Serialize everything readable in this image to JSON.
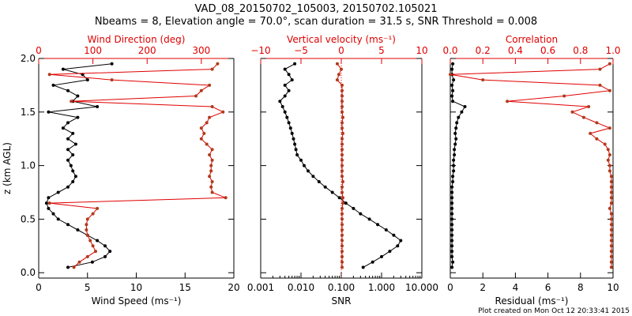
{
  "title_line1": "VAD_08_20150702_105003, 20150702.105021",
  "title_line2": "Nbeams = 8, Elevation angle = 70.0°, scan duration = 31.5 s, SNR Threshold = 0.008",
  "footer": "Plot created on Mon Oct 12 20:33:41 2015",
  "colors": {
    "black_series": "#000000",
    "red_series": "#b03a1a",
    "red_line": "#e00000",
    "red_axis": "#e00000"
  },
  "chart_data": [
    {
      "id": "wind",
      "type": "line",
      "shared_y": {
        "label": "z (km AGL)",
        "ylim": [
          -0.05,
          2.0
        ],
        "ticks": [
          0.0,
          0.5,
          1.0,
          1.5,
          2.0
        ],
        "tick_labels": [
          "0.0",
          "0.5",
          "1.0",
          "1.5",
          "2.0"
        ]
      },
      "bottom_axis": {
        "label": "Wind Speed (ms⁻¹)",
        "xlim": [
          0,
          20
        ],
        "ticks": [
          0,
          5,
          10,
          15,
          20
        ],
        "tick_labels": [
          "0",
          "5",
          "10",
          "15",
          "20"
        ]
      },
      "top_axis": {
        "label": "Wind Direction (deg)",
        "xlim": [
          0,
          360
        ],
        "ticks": [
          0,
          100,
          200,
          300
        ],
        "tick_labels": [
          "0",
          "100",
          "200",
          "300"
        ]
      },
      "series": [
        {
          "name": "Wind Speed",
          "axis": "bottom",
          "color": "black",
          "z": [
            0.05,
            0.1,
            0.15,
            0.2,
            0.25,
            0.3,
            0.35,
            0.4,
            0.45,
            0.5,
            0.55,
            0.6,
            0.65,
            0.7,
            0.75,
            0.8,
            0.85,
            0.9,
            0.95,
            1.0,
            1.05,
            1.1,
            1.15,
            1.2,
            1.25,
            1.3,
            1.35,
            1.4,
            1.45,
            1.5,
            1.55,
            1.6,
            1.65,
            1.7,
            1.75,
            1.8,
            1.85,
            1.9,
            1.95
          ],
          "values": [
            3.0,
            5.5,
            6.8,
            7.3,
            6.8,
            6.0,
            5.0,
            4.0,
            3.0,
            2.0,
            1.5,
            1.0,
            0.8,
            1.0,
            2.0,
            3.0,
            3.5,
            3.8,
            3.5,
            3.3,
            3.0,
            3.5,
            3.0,
            3.8,
            3.0,
            3.5,
            2.5,
            3.0,
            4.0,
            1.0,
            6.0,
            3.5,
            4.0,
            3.0,
            1.5,
            5.0,
            4.5,
            2.5,
            7.5
          ]
        },
        {
          "name": "Wind Direction",
          "axis": "top",
          "color": "red",
          "z": [
            0.05,
            0.1,
            0.15,
            0.2,
            0.25,
            0.3,
            0.35,
            0.4,
            0.45,
            0.5,
            0.55,
            0.6,
            0.65,
            0.7,
            0.75,
            0.8,
            0.85,
            0.9,
            0.95,
            1.0,
            1.05,
            1.1,
            1.15,
            1.2,
            1.25,
            1.3,
            1.35,
            1.4,
            1.45,
            1.5,
            1.55,
            1.6,
            1.65,
            1.7,
            1.75,
            1.8,
            1.85,
            1.9,
            1.95
          ],
          "values": [
            65,
            75,
            90,
            105,
            100,
            95,
            90,
            88,
            88,
            90,
            100,
            108,
            20,
            345,
            320,
            318,
            320,
            315,
            318,
            318,
            320,
            315,
            320,
            310,
            300,
            305,
            300,
            310,
            315,
            340,
            320,
            60,
            290,
            300,
            315,
            135,
            20,
            320,
            330
          ]
        }
      ]
    },
    {
      "id": "vertical",
      "type": "line",
      "bottom_axis": {
        "label": "SNR",
        "scale": "log",
        "xlim": [
          0.001,
          10
        ],
        "ticks": [
          0.001,
          0.01,
          0.1,
          1,
          10
        ],
        "tick_labels": [
          "0.001",
          "0.010",
          "0.100",
          "1.000",
          "10.000"
        ]
      },
      "top_axis": {
        "label": "Vertical velocity (ms⁻¹)",
        "xlim": [
          -10,
          10
        ],
        "ticks": [
          -10,
          -5,
          0,
          5,
          10
        ],
        "tick_labels": [
          "−10",
          "−5",
          "0",
          "5",
          "10"
        ]
      },
      "series": [
        {
          "name": "SNR",
          "axis": "bottom",
          "color": "black",
          "z": [
            0.05,
            0.1,
            0.15,
            0.2,
            0.25,
            0.3,
            0.35,
            0.4,
            0.45,
            0.5,
            0.55,
            0.6,
            0.65,
            0.7,
            0.75,
            0.8,
            0.85,
            0.9,
            0.95,
            1.0,
            1.05,
            1.1,
            1.15,
            1.2,
            1.25,
            1.3,
            1.35,
            1.4,
            1.45,
            1.5,
            1.55,
            1.6,
            1.65,
            1.7,
            1.75,
            1.8,
            1.85,
            1.9,
            1.95
          ],
          "values": [
            0.35,
            0.6,
            1.0,
            1.6,
            2.5,
            3.0,
            2.0,
            1.3,
            0.8,
            0.5,
            0.3,
            0.2,
            0.13,
            0.09,
            0.06,
            0.04,
            0.028,
            0.02,
            0.015,
            0.012,
            0.01,
            0.008,
            0.0075,
            0.007,
            0.0065,
            0.006,
            0.0055,
            0.005,
            0.0045,
            0.004,
            0.0035,
            0.003,
            0.004,
            0.005,
            0.004,
            0.006,
            0.005,
            0.004,
            0.007
          ]
        },
        {
          "name": "Vertical velocity",
          "axis": "top",
          "color": "red",
          "z": [
            0.05,
            0.1,
            0.15,
            0.2,
            0.25,
            0.3,
            0.35,
            0.4,
            0.45,
            0.5,
            0.55,
            0.6,
            0.65,
            0.7,
            0.75,
            0.8,
            0.85,
            0.9,
            0.95,
            1.0,
            1.05,
            1.1,
            1.15,
            1.2,
            1.25,
            1.3,
            1.35,
            1.4,
            1.45,
            1.5,
            1.55,
            1.6,
            1.65,
            1.7,
            1.75,
            1.8,
            1.85,
            1.9,
            1.95
          ],
          "values": [
            0.1,
            0.1,
            0.1,
            0.1,
            0.1,
            0.1,
            0.1,
            0.1,
            0.1,
            0.1,
            0.1,
            0.1,
            0.2,
            0.2,
            0.1,
            0.1,
            0.2,
            0.1,
            0.1,
            0.1,
            0.1,
            0.1,
            0.1,
            0.1,
            0.1,
            0.2,
            0.1,
            0.1,
            0.2,
            0.1,
            0.1,
            0.1,
            0.1,
            0.1,
            0.1,
            -0.5,
            -0.3,
            0.0,
            -0.5
          ]
        }
      ]
    },
    {
      "id": "correlation",
      "type": "line",
      "bottom_axis": {
        "label": "Residual (ms⁻¹)",
        "xlim": [
          0,
          10
        ],
        "ticks": [
          0,
          2,
          4,
          6,
          8,
          10
        ],
        "tick_labels": [
          "0",
          "2",
          "4",
          "6",
          "8",
          "10"
        ]
      },
      "top_axis": {
        "label": "Correlation",
        "xlim": [
          0,
          1
        ],
        "ticks": [
          0,
          0.2,
          0.4,
          0.6,
          0.8,
          1.0
        ],
        "tick_labels": [
          "0.0",
          "0.2",
          "0.4",
          "0.6",
          "0.8",
          "1.0"
        ]
      },
      "series": [
        {
          "name": "Residual",
          "axis": "bottom",
          "color": "black",
          "z": [
            0.05,
            0.1,
            0.15,
            0.2,
            0.25,
            0.3,
            0.35,
            0.4,
            0.45,
            0.5,
            0.55,
            0.6,
            0.65,
            0.7,
            0.75,
            0.8,
            0.85,
            0.9,
            0.95,
            1.0,
            1.05,
            1.1,
            1.15,
            1.2,
            1.25,
            1.3,
            1.35,
            1.4,
            1.45,
            1.5,
            1.55,
            1.6,
            1.65,
            1.7,
            1.75,
            1.8,
            1.85,
            1.9,
            1.95
          ],
          "values": [
            0.1,
            0.15,
            0.1,
            0.1,
            0.1,
            0.1,
            0.1,
            0.1,
            0.1,
            0.1,
            0.1,
            0.1,
            0.1,
            0.1,
            0.1,
            0.1,
            0.15,
            0.15,
            0.2,
            0.2,
            0.2,
            0.25,
            0.25,
            0.3,
            0.35,
            0.3,
            0.35,
            0.4,
            0.5,
            0.7,
            0.9,
            0.15,
            0.1,
            0.15,
            0.1,
            0.2,
            0.1,
            0.1,
            0.15
          ]
        },
        {
          "name": "Correlation",
          "axis": "top",
          "color": "red",
          "z": [
            0.05,
            0.1,
            0.15,
            0.2,
            0.25,
            0.3,
            0.35,
            0.4,
            0.45,
            0.5,
            0.55,
            0.6,
            0.65,
            0.7,
            0.75,
            0.8,
            0.85,
            0.9,
            0.95,
            1.0,
            1.05,
            1.1,
            1.15,
            1.2,
            1.25,
            1.3,
            1.35,
            1.4,
            1.45,
            1.5,
            1.55,
            1.6,
            1.65,
            1.7,
            1.75,
            1.8,
            1.85,
            1.9,
            1.95
          ],
          "values": [
            0.99,
            0.99,
            0.99,
            0.99,
            0.99,
            0.99,
            0.99,
            0.99,
            0.99,
            0.99,
            0.99,
            0.98,
            0.99,
            0.99,
            0.99,
            0.99,
            0.99,
            0.99,
            0.98,
            0.98,
            0.97,
            0.98,
            0.97,
            0.95,
            0.9,
            0.86,
            0.98,
            0.9,
            0.82,
            0.75,
            0.85,
            0.35,
            0.7,
            0.98,
            0.92,
            0.2,
            0.0,
            0.92,
            0.98
          ]
        }
      ]
    }
  ]
}
